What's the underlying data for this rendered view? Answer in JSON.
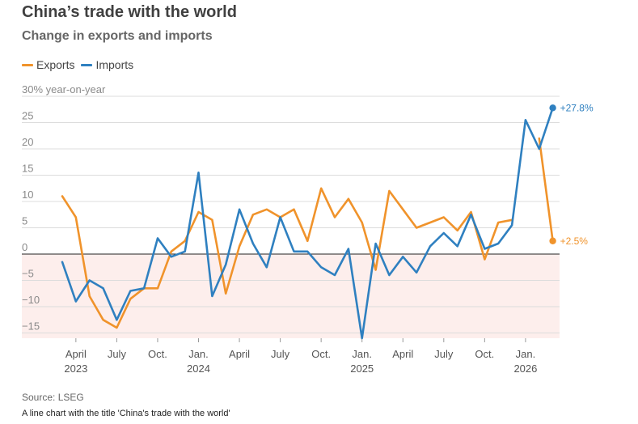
{
  "title": "China’s trade with the world",
  "subtitle": "Change in exports and imports",
  "source": "Source: LSEG",
  "caption": "A line chart with the title 'China's trade with the world'",
  "legend": [
    {
      "name": "Exports",
      "color": "#f0932b"
    },
    {
      "name": "Imports",
      "color": "#2f80c0"
    }
  ],
  "chart_data": {
    "type": "line",
    "title": "China’s trade with the world",
    "subtitle": "Change in exports and imports",
    "ylabel": "30% year-on-year",
    "ylim": [
      -16,
      30
    ],
    "yticks": [
      {
        "value": 30,
        "label": "30% year-on-year"
      },
      {
        "value": 25,
        "label": "25"
      },
      {
        "value": 20,
        "label": "20"
      },
      {
        "value": 15,
        "label": "15"
      },
      {
        "value": 10,
        "label": "10"
      },
      {
        "value": 5,
        "label": "5"
      },
      {
        "value": 0,
        "label": "0"
      },
      {
        "value": -5,
        "label": "−5"
      },
      {
        "value": -10,
        "label": "−10"
      },
      {
        "value": -15,
        "label": "−15"
      }
    ],
    "xticks": [
      {
        "month": "2023-04",
        "label": "April",
        "year": "2023"
      },
      {
        "month": "2023-07",
        "label": "July",
        "year": ""
      },
      {
        "month": "2023-10",
        "label": "Oct.",
        "year": ""
      },
      {
        "month": "2024-01",
        "label": "Jan.",
        "year": "2024"
      },
      {
        "month": "2024-04",
        "label": "April",
        "year": ""
      },
      {
        "month": "2024-07",
        "label": "July",
        "year": ""
      },
      {
        "month": "2024-10",
        "label": "Oct.",
        "year": ""
      },
      {
        "month": "2025-01",
        "label": "Jan.",
        "year": "2025"
      },
      {
        "month": "2025-04",
        "label": "April",
        "year": ""
      },
      {
        "month": "2025-07",
        "label": "July",
        "year": ""
      },
      {
        "month": "2025-10",
        "label": "Oct.",
        "year": ""
      },
      {
        "month": "2026-01",
        "label": "Jan.",
        "year": "2026"
      }
    ],
    "x": [
      "2023-03",
      "2023-04",
      "2023-05",
      "2023-06",
      "2023-07",
      "2023-08",
      "2023-09",
      "2023-10",
      "2023-11",
      "2023-12",
      "2024-01",
      "2024-02",
      "2024-03",
      "2024-04",
      "2024-05",
      "2024-06",
      "2024-07",
      "2024-08",
      "2024-09",
      "2024-10",
      "2024-11",
      "2024-12",
      "2025-01",
      "2025-02",
      "2025-03",
      "2025-04",
      "2025-05",
      "2025-06",
      "2025-07",
      "2025-08",
      "2025-09",
      "2025-10",
      "2025-11",
      "2025-12",
      "2026-01",
      "2026-02",
      "2026-03"
    ],
    "series": [
      {
        "name": "Exports",
        "color": "#f0932b",
        "end_label": "+2.5%",
        "values": [
          11,
          7,
          -8,
          -12.5,
          -14,
          -8.5,
          -6.5,
          -6.5,
          0.5,
          2.5,
          8,
          6.5,
          -7.5,
          1.5,
          7.5,
          8.5,
          7,
          8.5,
          2.5,
          12.5,
          7,
          10.5,
          6,
          -3,
          12,
          8.5,
          5,
          6,
          7,
          4.5,
          8,
          -1,
          6,
          6.5,
          null,
          22,
          2.5
        ]
      },
      {
        "name": "Imports",
        "color": "#2f80c0",
        "end_label": "+27.8%",
        "values": [
          -1.5,
          -9,
          -5,
          -6.5,
          -12.5,
          -7,
          -6.5,
          3,
          -0.5,
          0.5,
          15.5,
          -8,
          -2,
          8.5,
          2,
          -2.5,
          7,
          0.5,
          0.5,
          -2.5,
          -4,
          1,
          -16,
          2,
          -4,
          -0.5,
          -3.5,
          1.5,
          4,
          1.5,
          7.5,
          1,
          2,
          5.5,
          25.5,
          20,
          27.8
        ]
      }
    ],
    "shaded_region": "below zero",
    "grid": "horizontal",
    "legend_position": "top-left"
  }
}
